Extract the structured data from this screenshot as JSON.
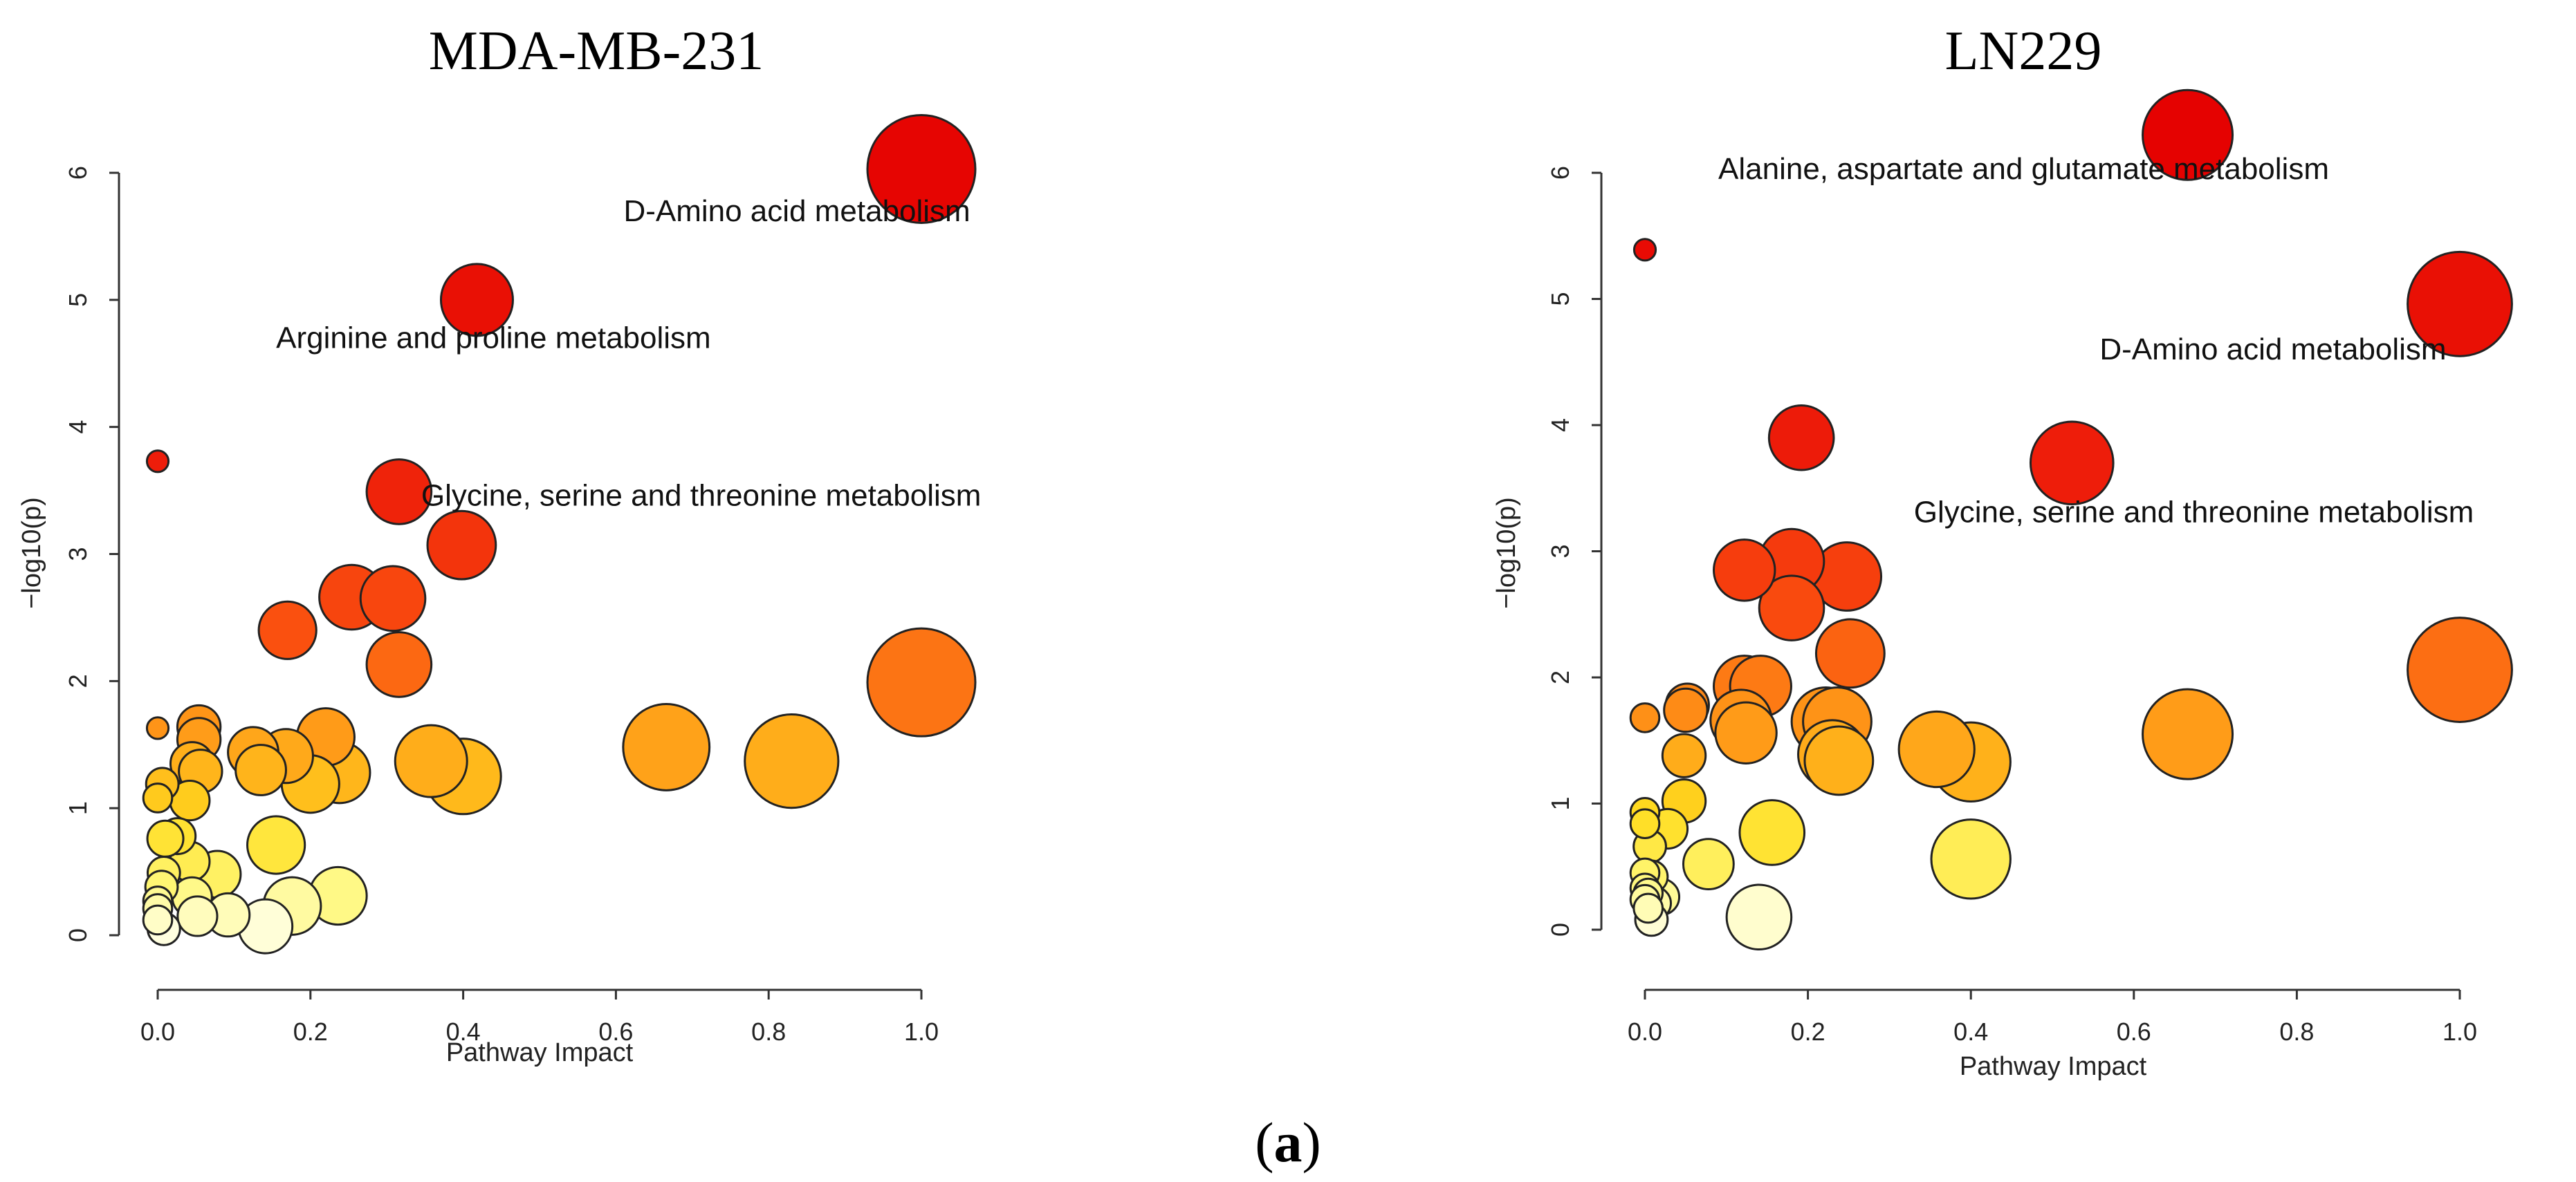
{
  "figure": {
    "label_open": "(",
    "label_letter": "a",
    "label_close": ")"
  },
  "chart_data": [
    {
      "type": "scatter",
      "title": "MDA-MB-231",
      "xlabel": "Pathway Impact",
      "ylabel": "−log10(p)",
      "xlim": [
        0,
        1
      ],
      "ylim": [
        0,
        6
      ],
      "xticks": [
        "0.0",
        "0.2",
        "0.4",
        "0.6",
        "0.8",
        "1.0"
      ],
      "yticks": [
        "0",
        "1",
        "2",
        "3",
        "4",
        "5",
        "6"
      ],
      "points": [
        {
          "x": 1.0,
          "y": 6.03,
          "size": 3
        },
        {
          "x": 0.418,
          "y": 5.0,
          "size": 2
        },
        {
          "x": 0.0,
          "y": 3.73,
          "size": 0.6
        },
        {
          "x": 0.316,
          "y": 3.49,
          "size": 1.8
        },
        {
          "x": 0.398,
          "y": 3.07,
          "size": 1.9
        },
        {
          "x": 0.254,
          "y": 2.66,
          "size": 1.8
        },
        {
          "x": 0.308,
          "y": 2.65,
          "size": 1.8
        },
        {
          "x": 0.17,
          "y": 2.4,
          "size": 1.6
        },
        {
          "x": 0.316,
          "y": 2.13,
          "size": 1.8
        },
        {
          "x": 1.0,
          "y": 1.99,
          "size": 3
        },
        {
          "x": 0.0,
          "y": 1.63,
          "size": 0.6
        },
        {
          "x": 0.054,
          "y": 1.64,
          "size": 1.2
        },
        {
          "x": 0.054,
          "y": 1.54,
          "size": 1.2
        },
        {
          "x": 0.22,
          "y": 1.56,
          "size": 1.6
        },
        {
          "x": 0.125,
          "y": 1.44,
          "size": 1.4
        },
        {
          "x": 0.168,
          "y": 1.41,
          "size": 1.5
        },
        {
          "x": 0.666,
          "y": 1.48,
          "size": 2.4
        },
        {
          "x": 0.83,
          "y": 1.37,
          "size": 2.6
        },
        {
          "x": 0.358,
          "y": 1.37,
          "size": 2.0
        },
        {
          "x": 0.4,
          "y": 1.25,
          "size": 2.1
        },
        {
          "x": 0.045,
          "y": 1.35,
          "size": 1.2
        },
        {
          "x": 0.056,
          "y": 1.29,
          "size": 1.2
        },
        {
          "x": 0.135,
          "y": 1.3,
          "size": 1.4
        },
        {
          "x": 0.238,
          "y": 1.28,
          "size": 1.7
        },
        {
          "x": 0.2,
          "y": 1.19,
          "size": 1.6
        },
        {
          "x": 0.006,
          "y": 1.19,
          "size": 0.9
        },
        {
          "x": 0.0,
          "y": 1.08,
          "size": 0.8
        },
        {
          "x": 0.042,
          "y": 1.06,
          "size": 1.1
        },
        {
          "x": 0.026,
          "y": 0.78,
          "size": 1.0
        },
        {
          "x": 0.01,
          "y": 0.76,
          "size": 1.0
        },
        {
          "x": 0.155,
          "y": 0.71,
          "size": 1.6
        },
        {
          "x": 0.078,
          "y": 0.48,
          "size": 1.3
        },
        {
          "x": 0.042,
          "y": 0.58,
          "size": 1.1
        },
        {
          "x": 0.008,
          "y": 0.49,
          "size": 0.9
        },
        {
          "x": 0.005,
          "y": 0.38,
          "size": 0.9
        },
        {
          "x": 0.045,
          "y": 0.3,
          "size": 1.1
        },
        {
          "x": 0.236,
          "y": 0.31,
          "size": 1.6
        },
        {
          "x": 0.176,
          "y": 0.23,
          "size": 1.6
        },
        {
          "x": 0.0,
          "y": 0.27,
          "size": 0.8
        },
        {
          "x": 0.0,
          "y": 0.21,
          "size": 0.8
        },
        {
          "x": 0.052,
          "y": 0.15,
          "size": 1.1
        },
        {
          "x": 0.092,
          "y": 0.16,
          "size": 1.2
        },
        {
          "x": 0.0,
          "y": 0.12,
          "size": 0.8
        },
        {
          "x": 0.141,
          "y": 0.07,
          "size": 1.5
        },
        {
          "x": 0.008,
          "y": 0.05,
          "size": 0.9
        }
      ],
      "annotations": [
        {
          "text": "D-Amino acid metabolism",
          "x": 0.61,
          "y": 5.62,
          "anchor": "start"
        },
        {
          "text": "Arginine and proline metabolism",
          "x": 0.155,
          "y": 4.62,
          "anchor": "start"
        },
        {
          "text": "Glycine, serine and threonine metabolism",
          "x": 0.345,
          "y": 3.38,
          "anchor": "start"
        }
      ]
    },
    {
      "type": "scatter",
      "title": "LN229",
      "xlabel": "Pathway Impact",
      "ylabel": "−log10(p)",
      "xlim": [
        0,
        1
      ],
      "ylim": [
        0,
        6
      ],
      "xticks": [
        "0.0",
        "0.2",
        "0.4",
        "0.6",
        "0.8",
        "1.0"
      ],
      "yticks": [
        "0",
        "1",
        "2",
        "3",
        "4",
        "5",
        "6"
      ],
      "points": [
        {
          "x": 0.666,
          "y": 6.3,
          "size": 2.5
        },
        {
          "x": 0.0,
          "y": 5.39,
          "size": 0.6
        },
        {
          "x": 1.0,
          "y": 4.96,
          "size": 2.9
        },
        {
          "x": 0.192,
          "y": 3.9,
          "size": 1.8
        },
        {
          "x": 0.524,
          "y": 3.7,
          "size": 2.3
        },
        {
          "x": 0.18,
          "y": 2.92,
          "size": 1.8
        },
        {
          "x": 0.122,
          "y": 2.85,
          "size": 1.7
        },
        {
          "x": 0.248,
          "y": 2.8,
          "size": 1.9
        },
        {
          "x": 0.18,
          "y": 2.55,
          "size": 1.8
        },
        {
          "x": 0.252,
          "y": 2.19,
          "size": 1.9
        },
        {
          "x": 1.0,
          "y": 2.06,
          "size": 2.9
        },
        {
          "x": 0.122,
          "y": 1.93,
          "size": 1.7
        },
        {
          "x": 0.142,
          "y": 1.93,
          "size": 1.7
        },
        {
          "x": 0.052,
          "y": 1.78,
          "size": 1.2
        },
        {
          "x": 0.05,
          "y": 1.74,
          "size": 1.2
        },
        {
          "x": 0.0,
          "y": 1.68,
          "size": 0.8
        },
        {
          "x": 0.118,
          "y": 1.66,
          "size": 1.7
        },
        {
          "x": 0.124,
          "y": 1.56,
          "size": 1.7
        },
        {
          "x": 0.222,
          "y": 1.65,
          "size": 1.9
        },
        {
          "x": 0.236,
          "y": 1.65,
          "size": 1.9
        },
        {
          "x": 0.666,
          "y": 1.55,
          "size": 2.5
        },
        {
          "x": 0.358,
          "y": 1.43,
          "size": 2.1
        },
        {
          "x": 0.4,
          "y": 1.33,
          "size": 2.2
        },
        {
          "x": 0.23,
          "y": 1.39,
          "size": 1.9
        },
        {
          "x": 0.238,
          "y": 1.34,
          "size": 1.9
        },
        {
          "x": 0.048,
          "y": 1.38,
          "size": 1.2
        },
        {
          "x": 0.048,
          "y": 1.02,
          "size": 1.2
        },
        {
          "x": 0.0,
          "y": 0.93,
          "size": 0.8
        },
        {
          "x": 0.0,
          "y": 0.84,
          "size": 0.8
        },
        {
          "x": 0.028,
          "y": 0.8,
          "size": 1.1
        },
        {
          "x": 0.156,
          "y": 0.77,
          "size": 1.8
        },
        {
          "x": 0.006,
          "y": 0.66,
          "size": 0.9
        },
        {
          "x": 0.4,
          "y": 0.56,
          "size": 2.2
        },
        {
          "x": 0.078,
          "y": 0.52,
          "size": 1.4
        },
        {
          "x": 0.0,
          "y": 0.45,
          "size": 0.8
        },
        {
          "x": 0.008,
          "y": 0.42,
          "size": 0.9
        },
        {
          "x": 0.0,
          "y": 0.33,
          "size": 0.8
        },
        {
          "x": 0.004,
          "y": 0.29,
          "size": 0.8
        },
        {
          "x": 0.0,
          "y": 0.24,
          "size": 0.8
        },
        {
          "x": 0.02,
          "y": 0.26,
          "size": 1.0
        },
        {
          "x": 0.004,
          "y": 0.17,
          "size": 0.8
        },
        {
          "x": 0.012,
          "y": 0.21,
          "size": 0.9
        },
        {
          "x": 0.14,
          "y": 0.1,
          "size": 1.8
        },
        {
          "x": 0.008,
          "y": 0.08,
          "size": 0.9
        }
      ],
      "annotations": [
        {
          "text": "Alanine, aspartate and glutamate metabolism",
          "x": 0.09,
          "y": 5.95,
          "anchor": "start"
        },
        {
          "text": "D-Amino acid metabolism",
          "x": 0.558,
          "y": 4.52,
          "anchor": "start"
        },
        {
          "text": "Glycine, serine and threonine metabolism",
          "x": 0.33,
          "y": 3.23,
          "anchor": "start"
        }
      ]
    }
  ]
}
